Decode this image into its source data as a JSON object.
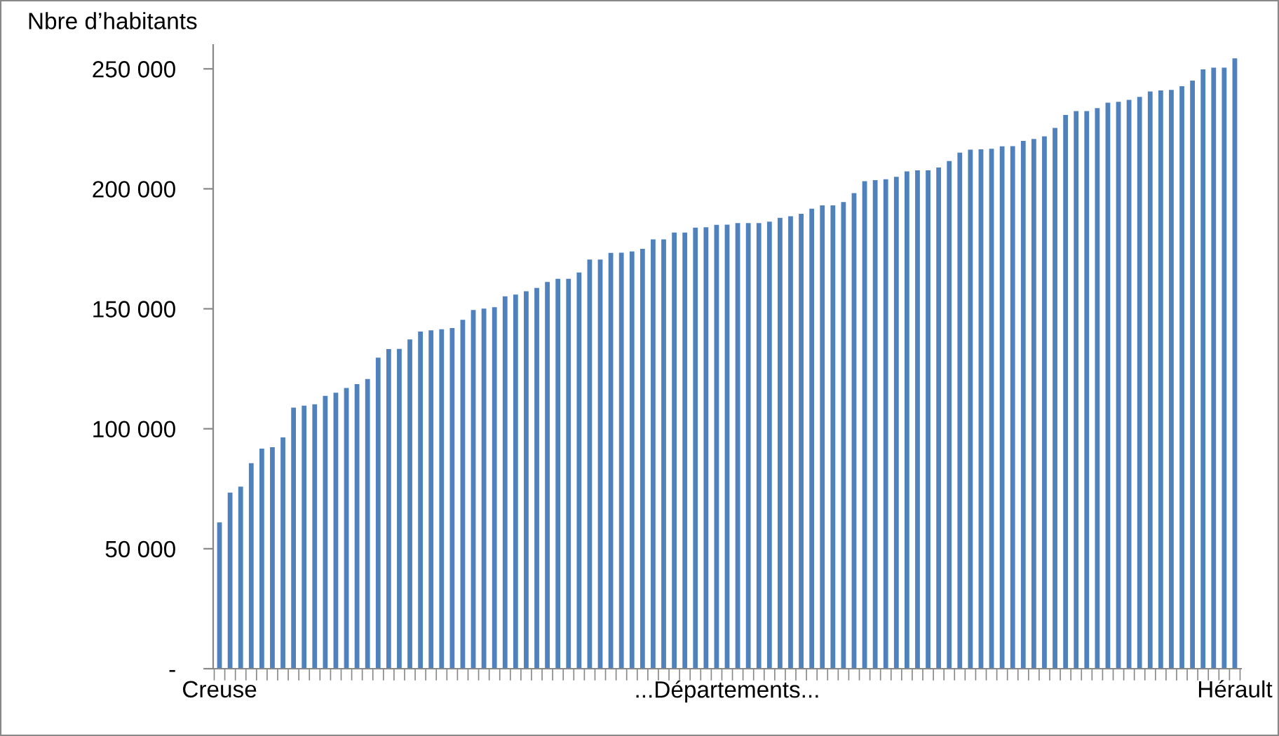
{
  "chart_data": {
    "type": "bar",
    "ylabel": "Nbre d’habitants",
    "color": "#4f81bd",
    "categories": [
      "Creuse",
      null,
      null,
      null,
      null,
      null,
      null,
      null,
      null,
      null,
      null,
      null,
      null,
      null,
      null,
      null,
      null,
      null,
      null,
      null,
      null,
      null,
      null,
      null,
      null,
      null,
      null,
      null,
      null,
      null,
      null,
      null,
      null,
      null,
      null,
      null,
      null,
      null,
      null,
      null,
      null,
      null,
      null,
      null,
      null,
      null,
      null,
      null,
      "...Départements...",
      null,
      null,
      null,
      null,
      null,
      null,
      null,
      null,
      null,
      null,
      null,
      null,
      null,
      null,
      null,
      null,
      null,
      null,
      null,
      null,
      null,
      null,
      null,
      null,
      null,
      null,
      null,
      null,
      null,
      null,
      null,
      null,
      null,
      null,
      null,
      null,
      null,
      null,
      null,
      null,
      null,
      null,
      null,
      null,
      null,
      null,
      null,
      "Hérault"
    ],
    "values": [
      61000,
      73400,
      75900,
      85700,
      91700,
      92300,
      96400,
      108800,
      109600,
      110200,
      113700,
      115000,
      117000,
      118600,
      120700,
      129600,
      133200,
      133300,
      137200,
      140500,
      141000,
      141500,
      142000,
      145400,
      149500,
      150100,
      150700,
      155200,
      155900,
      157300,
      158700,
      161200,
      162500,
      162500,
      165100,
      170500,
      170500,
      173300,
      173400,
      173900,
      175000,
      178900,
      178900,
      181800,
      181800,
      183800,
      184000,
      185000,
      185100,
      185700,
      185700,
      185700,
      186300,
      187900,
      188600,
      189600,
      191700,
      193100,
      193100,
      194500,
      198200,
      203200,
      203600,
      204000,
      205000,
      207300,
      207700,
      207700,
      208900,
      211600,
      215100,
      216300,
      216500,
      216700,
      217700,
      217800,
      220000,
      220800,
      221900,
      225400,
      230800,
      232400,
      232400,
      233600,
      235900,
      236300,
      237100,
      238300,
      240600,
      241000,
      241200,
      242800,
      245100,
      249800,
      250500,
      250500,
      254400
    ],
    "ylim": [
      0,
      260000
    ],
    "yticks": [
      {
        "value": 0,
        "label": "-"
      },
      {
        "value": 50000,
        "label": "50 000"
      },
      {
        "value": 100000,
        "label": "100 000"
      },
      {
        "value": 150000,
        "label": "150 000"
      },
      {
        "value": 200000,
        "label": "200 000"
      },
      {
        "value": 250000,
        "label": "250 000"
      }
    ],
    "grid": false,
    "legend": false
  }
}
